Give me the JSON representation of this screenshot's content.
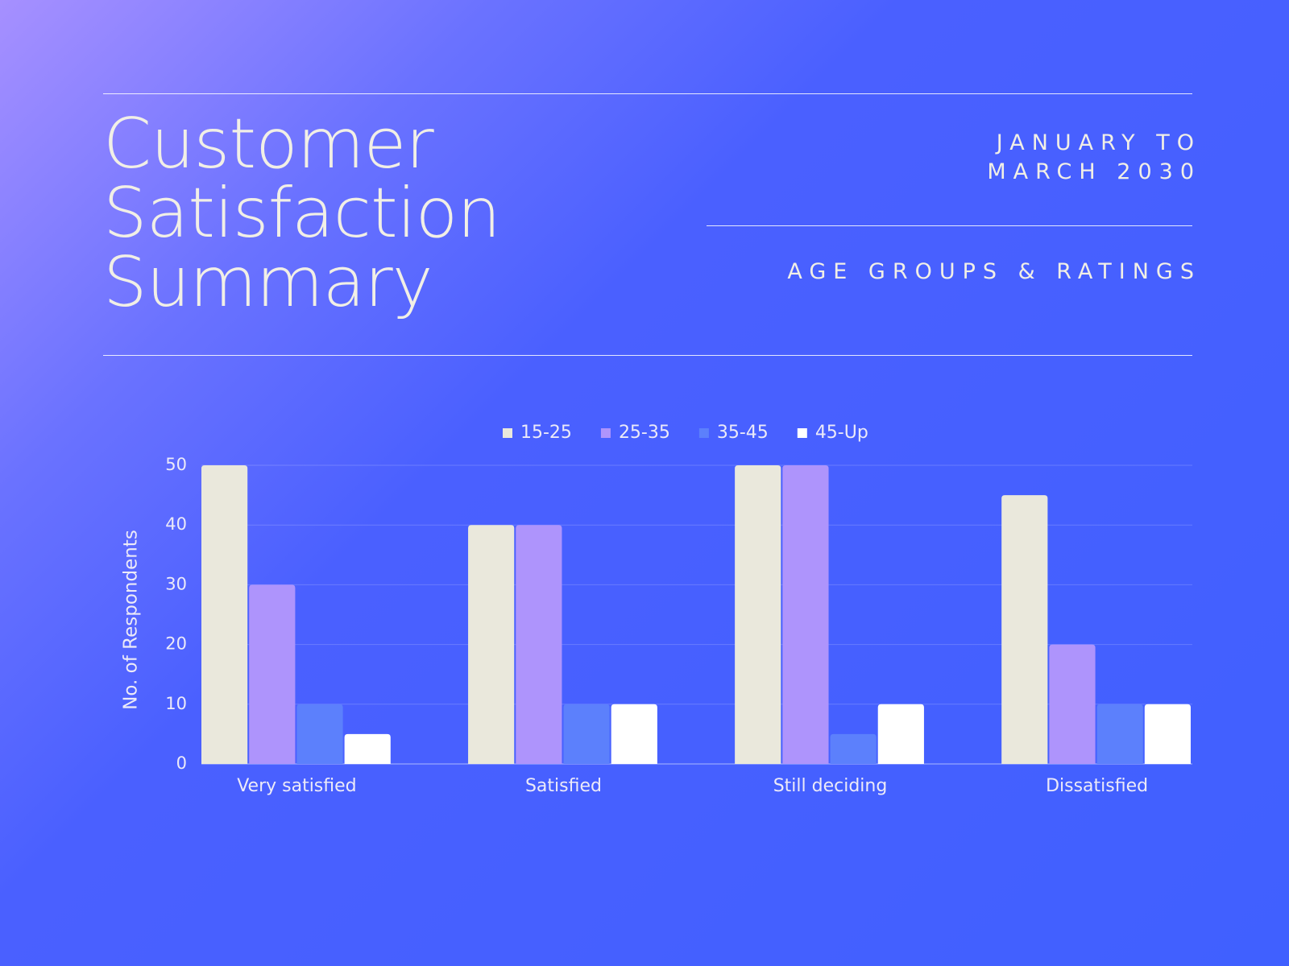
{
  "title": "Customer Satisfaction Summary",
  "date_range": "JANUARY TO MARCH 2030",
  "section": "AGE GROUPS & RATINGS",
  "chart_data": {
    "type": "bar",
    "y_label": "No. of Respondents",
    "categories": [
      "Very satisfied",
      "Satisfied",
      "Still deciding",
      "Dissatisfied"
    ],
    "series": [
      {
        "name": "15-25",
        "color": "#eae8dc",
        "values": [
          50,
          40,
          50,
          45
        ]
      },
      {
        "name": "25-35",
        "color": "#ae94fc",
        "values": [
          30,
          40,
          50,
          20
        ]
      },
      {
        "name": "35-45",
        "color": "#5c80fc",
        "values": [
          10,
          10,
          5,
          10
        ]
      },
      {
        "name": "45-Up",
        "color": "#ffffff",
        "values": [
          5,
          10,
          10,
          10
        ]
      }
    ],
    "ylim": [
      0,
      50
    ],
    "yticks": [
      0,
      10,
      20,
      30,
      40,
      50
    ],
    "grid": true,
    "legend": "top"
  }
}
